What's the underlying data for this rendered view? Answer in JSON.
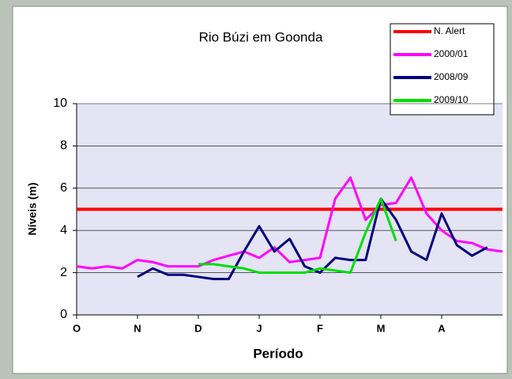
{
  "chart_data": {
    "type": "line",
    "title": "Rio Búzi em Goonda",
    "xlabel": "Período",
    "ylabel": "Níveis (m)",
    "categories": [
      "O",
      null,
      null,
      null,
      "N",
      null,
      null,
      null,
      "D",
      null,
      null,
      null,
      "J",
      null,
      null,
      null,
      "F",
      null,
      null,
      null,
      "M",
      null,
      null,
      null,
      "A",
      null,
      null,
      null,
      null
    ],
    "ylim": [
      0,
      10
    ],
    "yticks": [
      0,
      2,
      4,
      6,
      8,
      10
    ],
    "grid": true,
    "legend": "top-right",
    "series": [
      {
        "name": "N. Alert",
        "color": "#ff0000",
        "values": [
          5,
          5,
          5,
          5,
          5,
          5,
          5,
          5,
          5,
          5,
          5,
          5,
          5,
          5,
          5,
          5,
          5,
          5,
          5,
          5,
          5,
          5,
          5,
          5,
          5,
          5,
          5,
          5,
          5
        ]
      },
      {
        "name": "2000/01",
        "color": "#ff00ff",
        "values": [
          2.3,
          2.2,
          2.3,
          2.2,
          2.6,
          2.5,
          2.3,
          2.3,
          2.3,
          2.6,
          2.8,
          3.0,
          2.7,
          3.2,
          2.5,
          2.6,
          2.7,
          5.5,
          6.5,
          4.5,
          5.2,
          5.3,
          6.5,
          4.8,
          4.0,
          3.5,
          3.4,
          3.1,
          3.0
        ]
      },
      {
        "name": "2008/09",
        "color": "#000080",
        "values": [
          null,
          null,
          null,
          null,
          1.8,
          2.2,
          1.9,
          1.9,
          1.8,
          1.7,
          1.7,
          3.0,
          4.2,
          3.0,
          3.6,
          2.3,
          2.0,
          2.7,
          2.6,
          2.6,
          5.5,
          4.5,
          3.0,
          2.6,
          4.8,
          3.3,
          2.8,
          3.2,
          null
        ]
      },
      {
        "name": "2009/10",
        "color": "#00dd00",
        "values": [
          null,
          null,
          null,
          null,
          null,
          null,
          null,
          null,
          2.4,
          2.4,
          2.3,
          2.2,
          2.0,
          2.0,
          2.0,
          2.0,
          2.2,
          2.1,
          2.0,
          3.9,
          5.5,
          3.5,
          null,
          null,
          null,
          null,
          null,
          null,
          null
        ]
      }
    ]
  }
}
